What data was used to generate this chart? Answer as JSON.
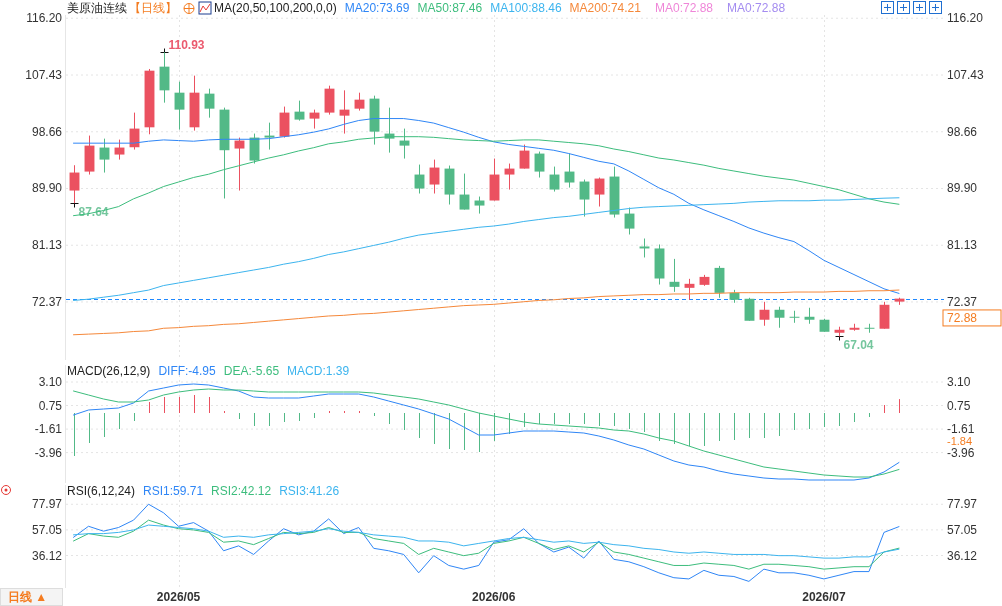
{
  "chart_data": [
    {
      "type": "candlestick",
      "title": "美原油连续",
      "subtitle": "【日线】",
      "legend_title": "MA(20,50,100,200,0,0)",
      "legend": "top",
      "grid": true,
      "tick_labels": "y",
      "categories": [
        null,
        null,
        null,
        null,
        null,
        null,
        null,
        "2026/05",
        null,
        null,
        null,
        null,
        null,
        null,
        null,
        null,
        null,
        null,
        null,
        null,
        null,
        null,
        null,
        null,
        null,
        null,
        null,
        null,
        "2026/06",
        null,
        null,
        null,
        null,
        null,
        null,
        null,
        null,
        null,
        null,
        null,
        null,
        null,
        null,
        null,
        null,
        null,
        null,
        null,
        null,
        null,
        "2026/07",
        null,
        null,
        null,
        null,
        null
      ],
      "ohlc": [
        [
          89.58,
          93.49,
          87.64,
          92.36
        ],
        [
          92.51,
          98.07,
          92.05,
          96.52
        ],
        [
          96.22,
          97.6,
          92.36,
          94.36
        ],
        [
          95.14,
          97.45,
          94.36,
          96.22
        ],
        [
          96.27,
          101.62,
          95.91,
          99.15
        ],
        [
          99.35,
          108.36,
          98.27,
          108.1
        ],
        [
          108.72,
          110.93,
          103.16,
          105.06
        ],
        [
          104.7,
          106.4,
          98.99,
          102.08
        ],
        [
          99.35,
          107.33,
          98.84,
          104.7
        ],
        [
          104.55,
          105.32,
          100.84,
          102.23
        ],
        [
          102.08,
          102.39,
          88.35,
          95.81
        ],
        [
          96.07,
          97.76,
          89.58,
          97.3
        ],
        [
          97.76,
          98.38,
          93.75,
          94.21
        ],
        [
          98.07,
          100.07,
          95.91,
          97.76
        ],
        [
          97.91,
          102.55,
          97.76,
          101.62
        ],
        [
          101.77,
          103.47,
          100.38,
          100.54
        ],
        [
          100.69,
          102.08,
          99.15,
          101.62
        ],
        [
          101.62,
          105.78,
          101.31,
          105.32
        ],
        [
          101.15,
          105.06,
          98.38,
          102.08
        ],
        [
          102.23,
          104.7,
          101.93,
          103.62
        ],
        [
          103.78,
          104.24,
          96.68,
          98.68
        ],
        [
          98.38,
          102.39,
          95.44,
          97.6
        ],
        [
          97.3,
          99.15,
          94.52,
          96.52
        ],
        [
          92.05,
          93.59,
          89.12,
          89.89
        ],
        [
          90.51,
          94.36,
          89.12,
          93.13
        ],
        [
          92.97,
          93.44,
          87.42,
          88.96
        ],
        [
          88.96,
          92.2,
          86.64,
          86.64
        ],
        [
          88.04,
          88.65,
          86.02,
          87.26
        ],
        [
          88.04,
          94.52,
          88.04,
          92.05
        ],
        [
          92.05,
          93.75,
          89.73,
          92.97
        ],
        [
          92.97,
          96.68,
          92.97,
          95.75
        ],
        [
          95.29,
          95.6,
          91.59,
          92.51
        ],
        [
          92.05,
          93.28,
          89.42,
          89.73
        ],
        [
          92.51,
          95.29,
          90.04,
          90.82
        ],
        [
          90.97,
          91.28,
          85.56,
          88.19
        ],
        [
          88.96,
          91.59,
          87.11,
          91.43
        ],
        [
          91.74,
          93.28,
          85.41,
          85.87
        ],
        [
          86.02,
          86.95,
          82.79,
          83.7
        ],
        [
          80.94,
          82.17,
          79.24,
          80.63
        ],
        [
          80.63,
          81.25,
          75.06,
          75.99
        ],
        [
          75.48,
          79.02,
          73.93,
          74.7
        ],
        [
          74.55,
          75.94,
          72.7,
          75.17
        ],
        [
          75.01,
          76.55,
          74.86,
          76.24
        ],
        [
          77.63,
          77.94,
          73.01,
          73.77
        ],
        [
          73.77,
          74.24,
          72.24,
          72.7
        ],
        [
          72.86,
          73.01,
          69.46,
          69.46
        ],
        [
          69.62,
          72.39,
          68.69,
          71.16
        ],
        [
          71.16,
          71.63,
          68.38,
          69.93
        ],
        [
          70.08,
          71.01,
          69.15,
          69.93
        ],
        [
          70.08,
          71.47,
          69.0,
          69.62
        ],
        [
          69.62,
          69.77,
          67.76,
          67.76
        ],
        [
          67.61,
          68.54,
          67.04,
          68.07
        ],
        [
          68.07,
          69.0,
          67.92,
          68.38
        ],
        [
          68.38,
          69.0,
          67.61,
          68.23
        ],
        [
          68.23,
          72.39,
          68.23,
          71.93
        ],
        [
          72.42,
          73.03,
          71.92,
          72.88
        ]
      ],
      "colors": [
        "#eb5160",
        "#eb5160",
        "#52b987",
        "#eb5160",
        "#eb5160",
        "#eb5160",
        "#52b987",
        "#52b987",
        "#eb5160",
        "#52b987",
        "#52b987",
        "#eb5160",
        "#52b987",
        "#52b987",
        "#eb5160",
        "#52b987",
        "#eb5160",
        "#eb5160",
        "#eb5160",
        "#eb5160",
        "#52b987",
        "#52b987",
        "#52b987",
        "#52b987",
        "#eb5160",
        "#52b987",
        "#52b987",
        "#52b987",
        "#eb5160",
        "#eb5160",
        "#eb5160",
        "#52b987",
        "#52b987",
        "#52b987",
        "#52b987",
        "#eb5160",
        "#52b987",
        "#52b987",
        "#52b987",
        "#52b987",
        "#52b987",
        "#eb5160",
        "#eb5160",
        "#52b987",
        "#52b987",
        "#52b987",
        "#eb5160",
        "#52b987",
        "#52b987",
        "#52b987",
        "#52b987",
        "#eb5160",
        "#eb5160",
        "#52b987",
        "#eb5160",
        "#eb5160"
      ],
      "ylim": [
        63.4,
        116.7
      ],
      "yticks": [
        {
          "value": 116.2,
          "label": "116.20"
        },
        {
          "value": 107.43,
          "label": "107.43"
        },
        {
          "value": 98.66,
          "label": "98.66"
        },
        {
          "value": 89.9,
          "label": "89.90"
        },
        {
          "value": 81.13,
          "label": "81.13"
        },
        {
          "value": 72.37,
          "label": "72.37"
        }
      ],
      "y2lim": [
        63.4,
        116.7
      ],
      "y2ticks": [
        {
          "value": 116.2,
          "label": "116.20"
        },
        {
          "value": 107.43,
          "label": "107.43"
        },
        {
          "value": 98.66,
          "label": "98.66"
        },
        {
          "value": 89.9,
          "label": "89.90"
        },
        {
          "value": 81.13,
          "label": "81.13"
        },
        {
          "value": 72.37,
          "label": "72.37"
        }
      ],
      "ref_lines": [
        {
          "axis": "y",
          "value": 72.88,
          "label": "72.88",
          "color": "#1e88ff",
          "line_style": "dashed"
        }
      ],
      "annotations": [
        "MA0:72.88",
        "MA0:72.88",
        "110.93",
        "87.64",
        "67.04"
      ],
      "series": [
        {
          "name": "MA20:73.69",
          "type": "line",
          "color": "#2f86f6",
          "values": [
            96.9,
            96.9,
            96.9,
            96.9,
            96.9,
            97.2,
            97.4,
            97.3,
            97.2,
            97.4,
            97.5,
            97.5,
            97.5,
            97.6,
            97.9,
            98.2,
            98.6,
            99.1,
            99.8,
            100.4,
            100.7,
            100.7,
            100.7,
            100.4,
            100.0,
            99.3,
            98.6,
            97.8,
            97.1,
            96.7,
            96.4,
            96.1,
            95.8,
            95.3,
            94.7,
            94.1,
            93.7,
            92.6,
            91.3,
            90.0,
            89.0,
            87.6,
            86.6,
            85.7,
            84.8,
            83.8,
            83.0,
            82.3,
            81.7,
            80.3,
            78.8,
            77.7,
            76.6,
            75.5,
            74.4,
            73.69
          ]
        },
        {
          "name": "MA50:87.46",
          "type": "line",
          "color": "#3dbd7d",
          "values": [
            85.7,
            86.0,
            86.5,
            87.1,
            88.3,
            89.2,
            90.2,
            90.9,
            91.6,
            92.1,
            92.8,
            93.4,
            94.0,
            94.6,
            95.1,
            95.7,
            96.2,
            96.8,
            97.1,
            97.5,
            97.7,
            97.9,
            97.9,
            97.9,
            97.8,
            97.6,
            97.4,
            97.3,
            97.2,
            97.3,
            97.4,
            97.4,
            97.2,
            97.0,
            96.8,
            96.5,
            96.0,
            95.6,
            95.1,
            94.6,
            94.3,
            93.9,
            93.5,
            93.0,
            92.6,
            92.2,
            91.8,
            91.5,
            91.2,
            90.7,
            90.2,
            89.7,
            89.0,
            88.3,
            87.8,
            87.46
          ]
        },
        {
          "name": "MA100:88.46",
          "type": "line",
          "color": "#3cb4ee",
          "values": [
            72.6,
            72.8,
            73.1,
            73.4,
            73.8,
            74.2,
            74.9,
            75.3,
            75.7,
            76.1,
            76.5,
            76.9,
            77.3,
            77.7,
            78.2,
            78.6,
            79.1,
            79.7,
            80.1,
            80.6,
            81.1,
            81.6,
            82.2,
            82.7,
            83.0,
            83.3,
            83.6,
            83.9,
            84.1,
            84.4,
            84.8,
            85.1,
            85.4,
            85.6,
            85.9,
            86.2,
            86.5,
            86.8,
            87.0,
            87.1,
            87.2,
            87.3,
            87.4,
            87.5,
            87.6,
            87.8,
            87.9,
            88.0,
            88.0,
            88.0,
            88.1,
            88.1,
            88.2,
            88.3,
            88.4,
            88.46
          ]
        },
        {
          "name": "MA200:74.21",
          "type": "line",
          "color": "#f5883a",
          "values": [
            67.3,
            67.4,
            67.5,
            67.6,
            67.8,
            67.9,
            68.3,
            68.4,
            68.6,
            68.7,
            68.9,
            69.0,
            69.2,
            69.4,
            69.6,
            69.8,
            70.0,
            70.2,
            70.3,
            70.5,
            70.6,
            70.8,
            71.0,
            71.2,
            71.4,
            71.6,
            71.8,
            71.9,
            72.0,
            72.2,
            72.4,
            72.6,
            72.7,
            72.9,
            73.0,
            73.2,
            73.3,
            73.4,
            73.5,
            73.5,
            73.6,
            73.6,
            73.7,
            73.7,
            73.8,
            73.8,
            73.8,
            73.8,
            73.9,
            73.9,
            73.9,
            74.0,
            74.0,
            74.1,
            74.1,
            74.21
          ]
        }
      ]
    },
    {
      "type": "line",
      "legend_title": "MACD(26,12,9)",
      "legend": "top left",
      "grid": true,
      "tick_labels": "y",
      "categories": [
        null,
        null,
        null,
        null,
        null,
        null,
        null,
        "2026/05",
        null,
        null,
        null,
        null,
        null,
        null,
        null,
        null,
        null,
        null,
        null,
        null,
        null,
        null,
        null,
        null,
        null,
        null,
        null,
        null,
        "2026/06",
        null,
        null,
        null,
        null,
        null,
        null,
        null,
        null,
        null,
        null,
        null,
        null,
        null,
        null,
        null,
        null,
        null,
        null,
        null,
        null,
        null,
        "2026/07",
        null,
        null,
        null,
        null,
        null
      ],
      "ylim": [
        -7.0,
        4.8
      ],
      "yticks": [
        {
          "value": 3.1,
          "label": "3.10"
        },
        {
          "value": 0.75,
          "label": "0.75"
        },
        {
          "value": -1.61,
          "label": "-1.61"
        },
        {
          "value": -3.96,
          "label": "-3.96"
        }
      ],
      "y2lim": [
        -7.0,
        4.8
      ],
      "y2ticks": [
        {
          "value": 3.1,
          "label": "3.10"
        },
        {
          "value": 0.75,
          "label": "0.75"
        },
        {
          "value": -1.61,
          "label": "-1.61"
        },
        {
          "value": -3.96,
          "label": "-3.96"
        }
      ],
      "annotations": [
        "MACD:1.39",
        "-1.84"
      ],
      "series": [
        {
          "name": "DIFF:-4.95",
          "color": "#2f86f6",
          "values": [
            -0.2,
            0.3,
            0.4,
            0.5,
            1.0,
            2.2,
            2.5,
            2.8,
            2.9,
            2.8,
            2.5,
            2.2,
            1.6,
            1.5,
            1.5,
            1.5,
            1.7,
            1.9,
            1.9,
            1.9,
            1.6,
            1.2,
            0.8,
            0.4,
            -0.1,
            -0.6,
            -1.4,
            -2.2,
            -2.2,
            -2.0,
            -1.8,
            -1.8,
            -1.8,
            -1.9,
            -2.0,
            -2.3,
            -2.7,
            -3.2,
            -3.6,
            -4.2,
            -4.8,
            -5.2,
            -5.4,
            -5.8,
            -6.1,
            -6.3,
            -6.5,
            -6.6,
            -6.6,
            -6.7,
            -6.7,
            -6.7,
            -6.7,
            -6.5,
            -5.9,
            -4.95
          ]
        },
        {
          "name": "DEA:-5.65",
          "color": "#3dbd7d",
          "values": [
            2.2,
            1.8,
            1.4,
            1.1,
            1.1,
            1.3,
            1.8,
            2.1,
            2.3,
            2.4,
            2.3,
            2.3,
            2.2,
            2.1,
            2.1,
            2.1,
            2.1,
            2.1,
            2.1,
            2.1,
            2.0,
            1.8,
            1.6,
            1.4,
            1.1,
            0.8,
            0.4,
            0.0,
            -0.3,
            -0.6,
            -0.9,
            -1.1,
            -1.2,
            -1.3,
            -1.4,
            -1.5,
            -1.7,
            -1.8,
            -2.1,
            -2.5,
            -2.8,
            -3.3,
            -3.8,
            -4.2,
            -4.6,
            -5.0,
            -5.4,
            -5.6,
            -5.8,
            -6.0,
            -6.2,
            -6.3,
            -6.4,
            -6.4,
            -6.1,
            -5.65
          ]
        },
        {
          "type": "bar",
          "values": [
            -4.3,
            -3.0,
            -2.4,
            -1.6,
            -0.8,
            1.1,
            1.6,
            1.6,
            1.8,
            1.6,
            0.2,
            -0.6,
            -1.3,
            -1.3,
            -0.9,
            -0.8,
            -0.5,
            0.2,
            0.2,
            0.2,
            -0.3,
            -1.1,
            -1.7,
            -2.5,
            -3.1,
            -3.6,
            -3.7,
            -3.9,
            -2.8,
            -2.1,
            -1.4,
            -1.1,
            -1.1,
            -1.1,
            -1.1,
            -1.3,
            -1.3,
            -1.6,
            -1.9,
            -2.8,
            -3.1,
            -3.3,
            -3.3,
            -2.8,
            -2.7,
            -2.5,
            -2.5,
            -2.3,
            -1.7,
            -1.6,
            -1.4,
            -1.3,
            -0.9,
            -0.4,
            0.8,
            1.39
          ],
          "colors": [
            "#52b987",
            "#52b987",
            "#52b987",
            "#52b987",
            "#52b987",
            "#eb5160",
            "#eb5160",
            "#eb5160",
            "#eb5160",
            "#eb5160",
            "#eb5160",
            "#52b987",
            "#52b987",
            "#52b987",
            "#52b987",
            "#52b987",
            "#52b987",
            "#eb5160",
            "#eb5160",
            "#eb5160",
            "#52b987",
            "#52b987",
            "#52b987",
            "#52b987",
            "#52b987",
            "#52b987",
            "#52b987",
            "#52b987",
            "#52b987",
            "#52b987",
            "#52b987",
            "#52b987",
            "#52b987",
            "#52b987",
            "#52b987",
            "#52b987",
            "#52b987",
            "#52b987",
            "#52b987",
            "#52b987",
            "#52b987",
            "#52b987",
            "#52b987",
            "#52b987",
            "#52b987",
            "#52b987",
            "#52b987",
            "#52b987",
            "#52b987",
            "#52b987",
            "#52b987",
            "#52b987",
            "#52b987",
            "#52b987",
            "#eb5160",
            "#eb5160"
          ]
        }
      ]
    },
    {
      "type": "line",
      "legend_title": "RSI(6,12,24)",
      "legend": "top left",
      "grid": true,
      "categories": [
        null,
        null,
        null,
        null,
        null,
        null,
        null,
        "2026/05",
        null,
        null,
        null,
        null,
        null,
        null,
        null,
        null,
        null,
        null,
        null,
        null,
        null,
        null,
        null,
        null,
        null,
        null,
        null,
        null,
        "2026/06",
        null,
        null,
        null,
        null,
        null,
        null,
        null,
        null,
        null,
        null,
        null,
        null,
        null,
        null,
        null,
        null,
        null,
        null,
        null,
        null,
        null,
        "2026/07",
        null,
        null,
        null,
        null,
        null
      ],
      "ylim": [
        9.6,
        93.7
      ],
      "yticks": [
        {
          "value": 77.97,
          "label": "77.97"
        },
        {
          "value": 57.05,
          "label": "57.05"
        },
        {
          "value": 36.12,
          "label": "36.12"
        }
      ],
      "y2lim": [
        9.6,
        93.7
      ],
      "y2ticks": [
        {
          "value": 77.97,
          "label": "77.97"
        },
        {
          "value": 57.05,
          "label": "57.05"
        },
        {
          "value": 36.12,
          "label": "36.12"
        }
      ],
      "annotations": [
        "日线 ▲"
      ],
      "series": [
        {
          "name": "RSI1:59.71",
          "color": "#2f86f6",
          "values": [
            51,
            60,
            56,
            59,
            65,
            78,
            71,
            60,
            63,
            56,
            40,
            44,
            37,
            48,
            58,
            53,
            56,
            66,
            54,
            59,
            42,
            40,
            37,
            22,
            36,
            28,
            25,
            28,
            47,
            49,
            58,
            46,
            39,
            43,
            34,
            48,
            33,
            31,
            27,
            22,
            18,
            17,
            24,
            20,
            19,
            15,
            25,
            22,
            22,
            20,
            17,
            20,
            23,
            23,
            55,
            59.71
          ]
        },
        {
          "name": "RSI2:42.12",
          "color": "#3dbd7d",
          "values": [
            48,
            54,
            52,
            51,
            56,
            65,
            61,
            58,
            57,
            55,
            47,
            48,
            45,
            50,
            55,
            54,
            55,
            59,
            55,
            55,
            50,
            48,
            46,
            37,
            42,
            39,
            36,
            38,
            46,
            48,
            51,
            46,
            41,
            44,
            39,
            47,
            39,
            37,
            34,
            31,
            28,
            28,
            30,
            29,
            28,
            25,
            29,
            29,
            28,
            27,
            25,
            26,
            27,
            27,
            39,
            42.12
          ]
        },
        {
          "name": "RSI3:41.26",
          "color": "#3cb4ee",
          "values": [
            53,
            54,
            54,
            55,
            57,
            61,
            60,
            59,
            58,
            56,
            51,
            52,
            51,
            53,
            54,
            55,
            56,
            58,
            56,
            55,
            53,
            52,
            51,
            48,
            48,
            47,
            44,
            46,
            48,
            50,
            51,
            49,
            47,
            48,
            46,
            47,
            45,
            44,
            42,
            41,
            39,
            38,
            39,
            38,
            37,
            37,
            37,
            36,
            36,
            35,
            34,
            34,
            35,
            35,
            39,
            41.26
          ]
        }
      ]
    }
  ]
}
